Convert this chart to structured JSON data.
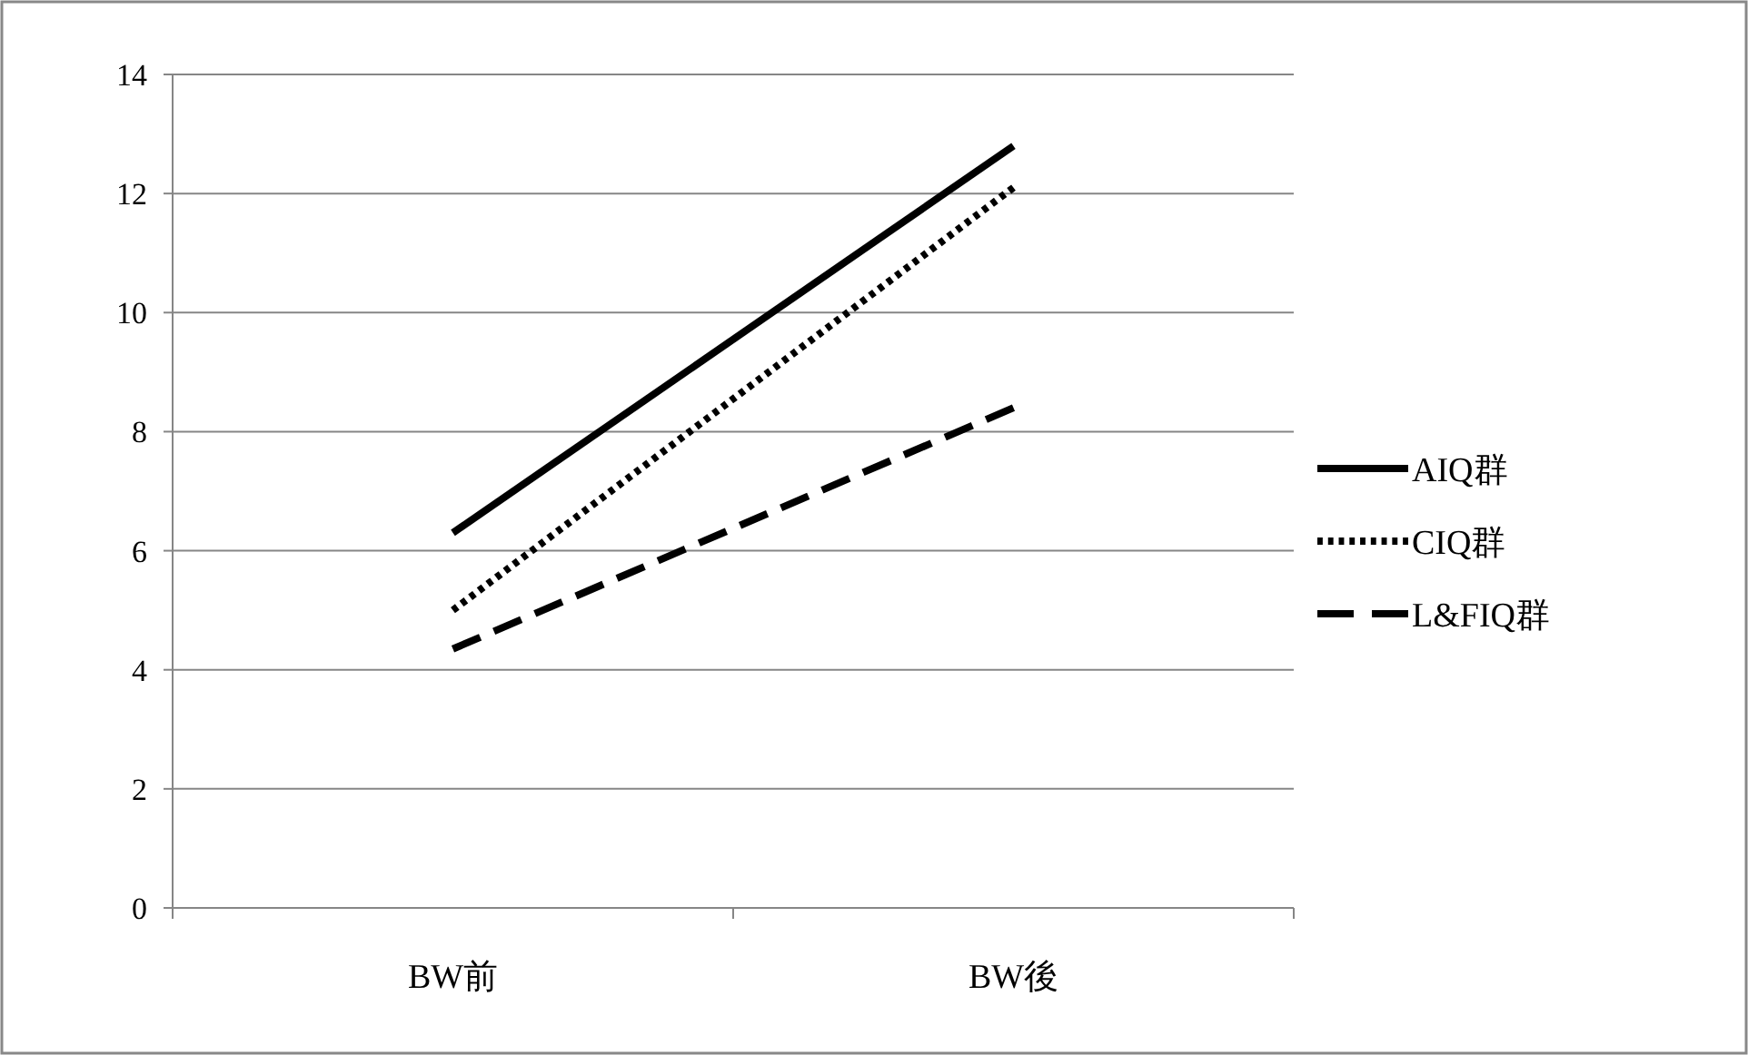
{
  "chart_data": {
    "type": "line",
    "categories": [
      "BW前",
      "BW後"
    ],
    "series": [
      {
        "name": "AIQ群",
        "color": "#000000",
        "line_style": "solid",
        "values": [
          6.3,
          12.8
        ]
      },
      {
        "name": "CIQ群",
        "color": "#000000",
        "line_style": "dotted",
        "values": [
          5.0,
          12.1
        ]
      },
      {
        "name": "L&FIQ群",
        "color": "#000000",
        "line_style": "dashed",
        "values": [
          4.35,
          8.4
        ]
      }
    ],
    "ylim": [
      0,
      14
    ],
    "yticks": [
      0,
      2,
      4,
      6,
      8,
      10,
      12,
      14
    ],
    "grid": "y",
    "legend": "right"
  }
}
